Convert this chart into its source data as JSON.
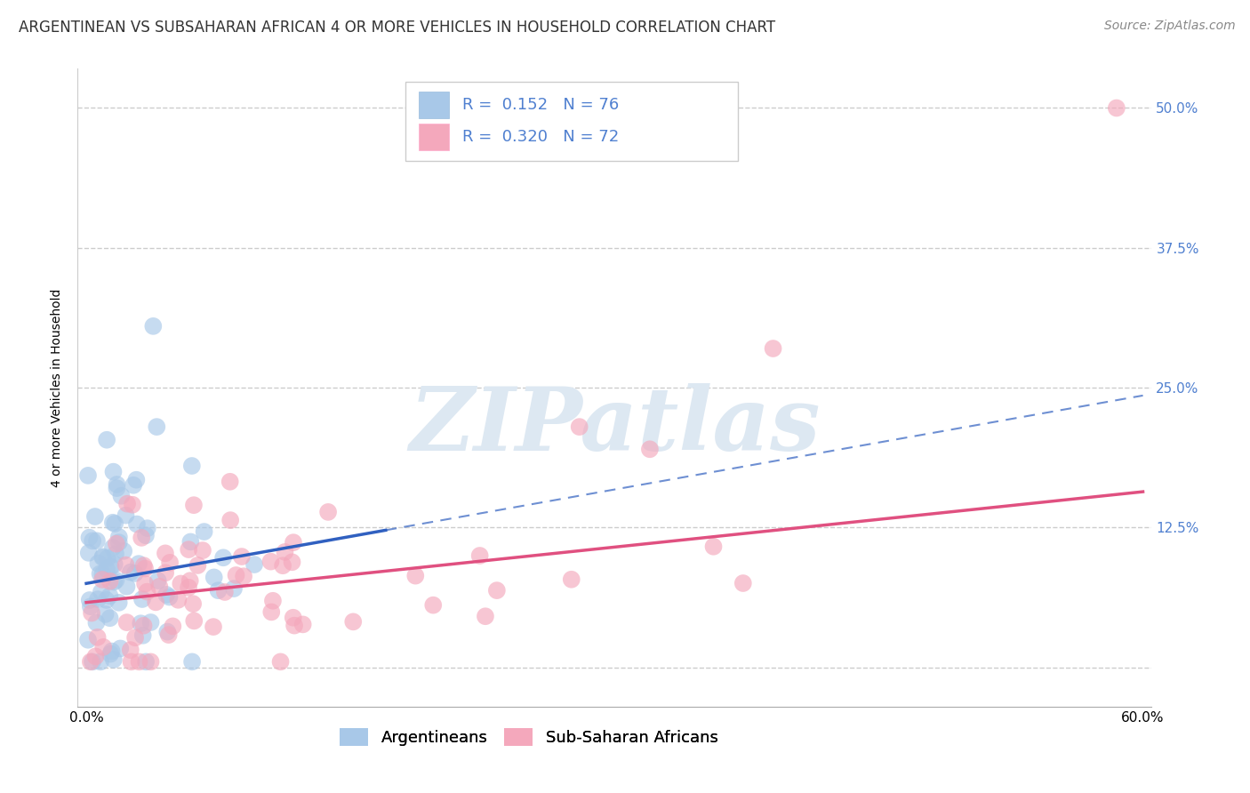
{
  "title": "ARGENTINEAN VS SUBSAHARAN AFRICAN 4 OR MORE VEHICLES IN HOUSEHOLD CORRELATION CHART",
  "source": "Source: ZipAtlas.com",
  "ylabel": "4 or more Vehicles in Household",
  "xlim": [
    -0.005,
    0.605
  ],
  "ylim": [
    -0.035,
    0.535
  ],
  "xticks": [
    0.0,
    0.1,
    0.2,
    0.3,
    0.4,
    0.5,
    0.6
  ],
  "xticklabels": [
    "0.0%",
    "",
    "",
    "",
    "",
    "",
    "60.0%"
  ],
  "yticks": [
    0.0,
    0.125,
    0.25,
    0.375,
    0.5
  ],
  "yticklabels_right": [
    "",
    "12.5%",
    "25.0%",
    "37.5%",
    "50.0%"
  ],
  "legend_labels": [
    "Argentineans",
    "Sub-Saharan Africans"
  ],
  "blue_color": "#A8C8E8",
  "pink_color": "#F4A8BC",
  "blue_line_color": "#3060C0",
  "pink_line_color": "#E05080",
  "watermark_text": "ZIPatlas",
  "title_fontsize": 12,
  "axis_label_fontsize": 10,
  "tick_fontsize": 11,
  "legend_fontsize": 13,
  "source_fontsize": 10,
  "ytick_label_color": "#5080D0",
  "grid_color": "#CCCCCC",
  "background_color": "#FFFFFF",
  "blue_r": "0.152",
  "blue_n": "76",
  "pink_r": "0.320",
  "pink_n": "72"
}
